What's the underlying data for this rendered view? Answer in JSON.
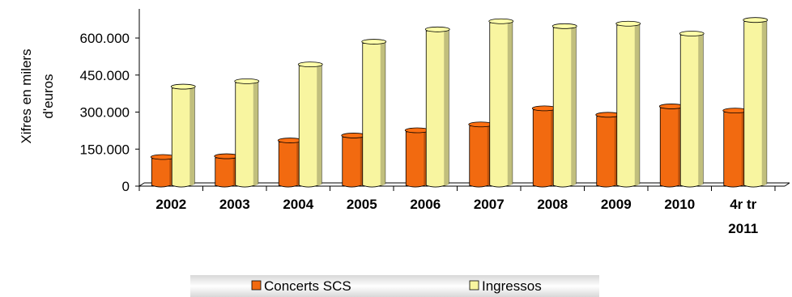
{
  "chart_data": {
    "type": "bar",
    "style": "3d-cylinder",
    "title": "",
    "xlabel": "",
    "ylabel_lines": [
      "Xifres en milers",
      "d'euros"
    ],
    "categories": [
      [
        "2002"
      ],
      [
        "2003"
      ],
      [
        "2004"
      ],
      [
        "2005"
      ],
      [
        "2006"
      ],
      [
        "2007"
      ],
      [
        "2008"
      ],
      [
        "2009"
      ],
      [
        "2010"
      ],
      [
        "4r tr",
        "2011"
      ]
    ],
    "series": [
      {
        "name": "Concerts SCS",
        "color": "#f26a10",
        "values": [
          105000,
          108000,
          172000,
          192000,
          213000,
          237000,
          302000,
          276000,
          310000,
          293000
        ]
      },
      {
        "name": "Ingressos",
        "color": "#f8f5a0",
        "values": [
          390000,
          412000,
          480000,
          572000,
          622000,
          655000,
          635000,
          645000,
          605000,
          660000
        ]
      }
    ],
    "ylim": [
      0,
      600000
    ],
    "yticks": [
      0,
      150000,
      300000,
      450000,
      600000
    ],
    "ytick_labels": [
      "0",
      "150.000",
      "300.000",
      "450.000",
      "600.000"
    ],
    "grid": false,
    "legend_position": "bottom"
  }
}
